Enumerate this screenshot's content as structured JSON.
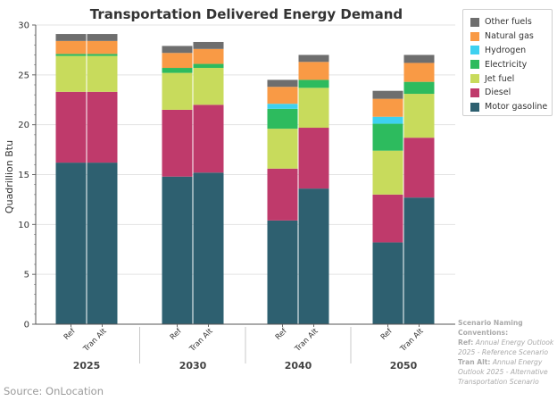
{
  "chart_data": {
    "type": "bar",
    "stacked": true,
    "title": "Transportation Delivered Energy Demand",
    "ylabel": "Quadrillion Btu",
    "xlabel": "",
    "ylim": [
      0,
      30
    ],
    "yticks": [
      0,
      5,
      10,
      15,
      20,
      25,
      30
    ],
    "groups": [
      "2025",
      "2030",
      "2040",
      "2050"
    ],
    "scenarios": [
      "Ref",
      "Tran Alt"
    ],
    "categories": [
      "2025 Ref",
      "2025 Tran Alt",
      "2030 Ref",
      "2030 Tran Alt",
      "2040 Ref",
      "2040 Tran Alt",
      "2050 Ref",
      "2050 Tran Alt"
    ],
    "series": [
      {
        "name": "Motor gasoline",
        "color": "#2e6070",
        "values": [
          16.2,
          16.2,
          14.8,
          15.2,
          10.4,
          13.6,
          8.2,
          12.7
        ]
      },
      {
        "name": "Diesel",
        "color": "#bf3a6b",
        "values": [
          7.1,
          7.1,
          6.7,
          6.8,
          5.2,
          6.1,
          4.8,
          6.0
        ]
      },
      {
        "name": "Jet fuel",
        "color": "#c8db5c",
        "values": [
          3.6,
          3.6,
          3.7,
          3.7,
          4.0,
          4.0,
          4.4,
          4.4
        ]
      },
      {
        "name": "Electricity",
        "color": "#2dbb5e",
        "values": [
          0.2,
          0.2,
          0.5,
          0.4,
          2.0,
          0.8,
          2.7,
          1.2
        ]
      },
      {
        "name": "Hydrogen",
        "color": "#3ed1f0",
        "values": [
          0.0,
          0.0,
          0.0,
          0.0,
          0.5,
          0.0,
          0.7,
          0.0
        ]
      },
      {
        "name": "Natural gas",
        "color": "#f99a45",
        "values": [
          1.3,
          1.3,
          1.5,
          1.5,
          1.7,
          1.8,
          1.8,
          1.9
        ]
      },
      {
        "name": "Other fuels",
        "color": "#6e6e6e",
        "values": [
          0.7,
          0.7,
          0.7,
          0.7,
          0.7,
          0.7,
          0.8,
          0.8
        ]
      }
    ]
  },
  "legend": {
    "items": [
      {
        "label": "Other fuels",
        "color": "#6e6e6e"
      },
      {
        "label": "Natural gas",
        "color": "#f99a45"
      },
      {
        "label": "Hydrogen",
        "color": "#3ed1f0"
      },
      {
        "label": "Electricity",
        "color": "#2dbb5e"
      },
      {
        "label": "Jet fuel",
        "color": "#c8db5c"
      },
      {
        "label": "Diesel",
        "color": "#bf3a6b"
      },
      {
        "label": "Motor gasoline",
        "color": "#2e6070"
      }
    ]
  },
  "note": {
    "heading": "Scenario Naming Conventions:",
    "ref_key": "Ref:",
    "ref_text": "Annual Energy Outlook 2025 - Reference Scenario",
    "alt_key": "Tran Alt:",
    "alt_text": "Annual Energy Outlook 2025 - Alternative Transportation Scenario"
  },
  "source": "Source: OnLocation"
}
